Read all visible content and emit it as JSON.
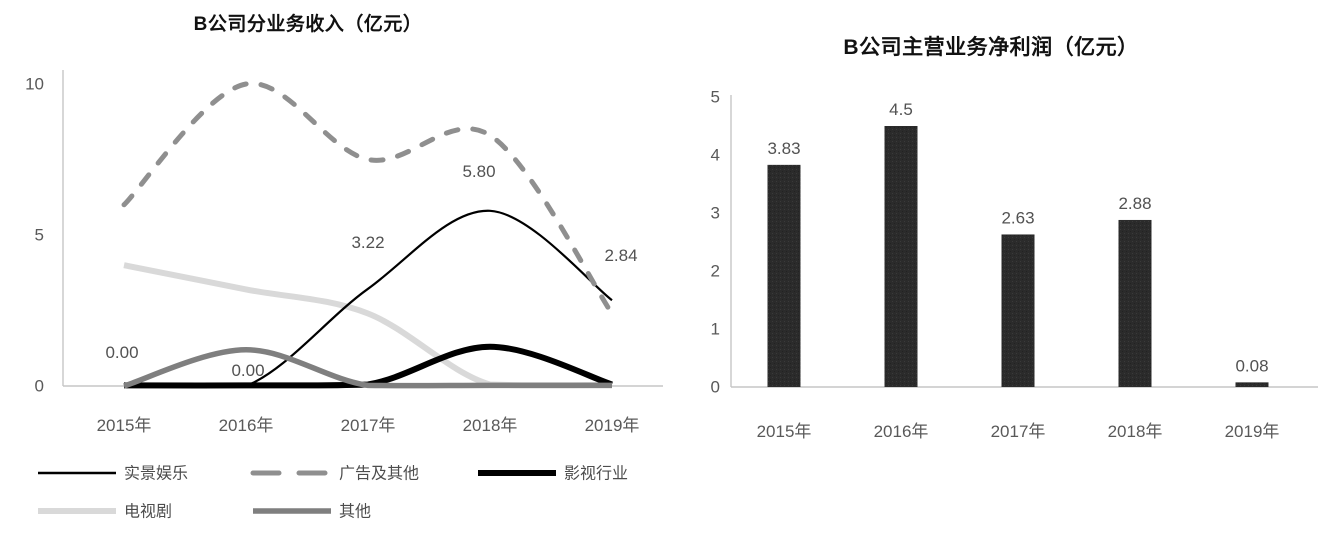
{
  "page": {
    "background": "#ffffff"
  },
  "style": {
    "axis_color": "#c6c6c6",
    "tick_color": "#595959",
    "value_label_color": "#525252",
    "legend_text_color": "#4d4d4d",
    "title_color": "#111111"
  },
  "chart_data": [
    {
      "type": "line",
      "title": "B公司分业务收入（亿元）",
      "categories": [
        "2015年",
        "2016年",
        "2017年",
        "2018年",
        "2019年"
      ],
      "ylim": [
        0,
        10
      ],
      "yticks": [
        "0",
        "5",
        "10"
      ],
      "grid": false,
      "legend_position": "bottom",
      "line_style": "smooth",
      "series": [
        {
          "name": "实景娱乐",
          "values": [
            0.0,
            0.0,
            3.22,
            5.8,
            2.84
          ],
          "color": "#000000",
          "width": 2.2,
          "style": "solid",
          "z": 2,
          "point_labels": [
            {
              "text": "0.00",
              "dx": -2,
              "dy": -28
            },
            {
              "text": "0.00",
              "dx": 2,
              "dy": -10
            },
            {
              "text": "3.22",
              "dx": 0,
              "dy": -41
            },
            {
              "text": "5.80",
              "dx": -11,
              "dy": -34
            },
            {
              "text": "2.84",
              "dx": 9,
              "dy": -39
            }
          ]
        },
        {
          "name": "广告及其他",
          "values": [
            6.0,
            10.0,
            7.5,
            8.3,
            2.4
          ],
          "color": "#8f8f8f",
          "width": 5,
          "style": "dashed",
          "z": 4
        },
        {
          "name": "影视行业",
          "values": [
            0.02,
            0.02,
            0.05,
            1.3,
            0.05
          ],
          "color": "#000000",
          "width": 6,
          "style": "solid",
          "z": 3
        },
        {
          "name": "电视剧",
          "values": [
            4.0,
            3.2,
            2.4,
            0.05,
            0.03
          ],
          "color": "#d9d9d9",
          "width": 6,
          "style": "solid",
          "z": 1
        },
        {
          "name": "其他",
          "values": [
            0.0,
            1.2,
            0.02,
            0.02,
            0.02
          ],
          "color": "#7f7f7f",
          "width": 5.5,
          "style": "solid",
          "z": 5
        }
      ]
    },
    {
      "type": "bar",
      "title": "B公司主营业务净利润（亿元）",
      "categories": [
        "2015年",
        "2016年",
        "2017年",
        "2018年",
        "2019年"
      ],
      "values": [
        3.83,
        4.5,
        2.63,
        2.88,
        0.08
      ],
      "value_labels": [
        "3.83",
        "4.5",
        "2.63",
        "2.88",
        "0.08"
      ],
      "ylim": [
        0,
        5
      ],
      "yticks": [
        "0",
        "1",
        "2",
        "3",
        "4",
        "5"
      ],
      "grid": false,
      "legend_position": "none",
      "bar_color": "#2b2b2b"
    }
  ]
}
